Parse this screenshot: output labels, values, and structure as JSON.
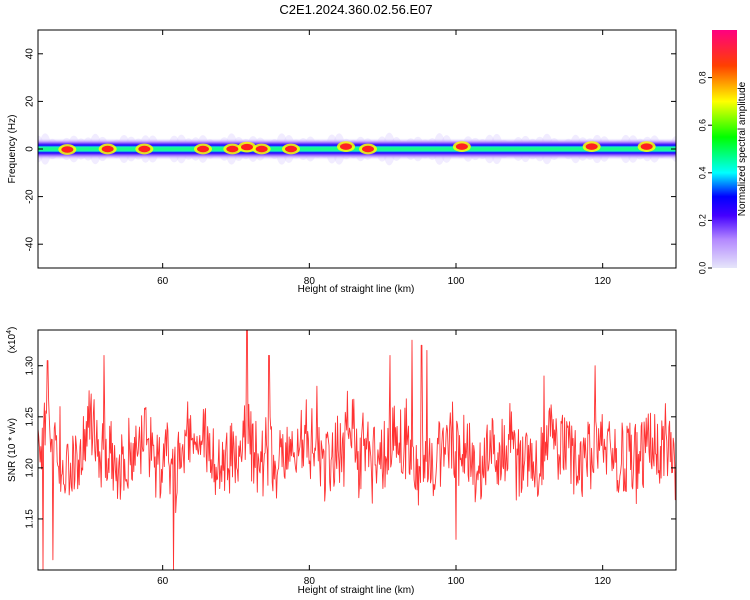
{
  "title": "C2E1.2024.360.02.56.E07",
  "chart_data": [
    {
      "type": "heatmap",
      "xlabel": "Height of straight line (km)",
      "ylabel": "Frequency (Hz)",
      "xlim": [
        43,
        130
      ],
      "ylim": [
        -50,
        50
      ],
      "xticks": [
        60,
        80,
        100,
        120
      ],
      "yticks": [
        -40,
        -20,
        0,
        20,
        40
      ],
      "colorbar": {
        "label": "Normalized spectral amplitude",
        "range": [
          0,
          1
        ],
        "ticks": [
          "0.0",
          "0.2",
          "0.4",
          "0.6",
          "0.8"
        ],
        "tick_values": [
          0.0,
          0.2,
          0.4,
          0.6,
          0.8
        ],
        "colors": [
          "#e6e6fa",
          "#7f00ff",
          "#0000ff",
          "#00ffff",
          "#00ff00",
          "#ffff00",
          "#ff0000",
          "#ff0080"
        ]
      },
      "band_center_hz": 0,
      "band_halfwidth_hz": 3,
      "hotspots": [
        {
          "x": 47,
          "y": -0.2
        },
        {
          "x": 52.5,
          "y": 0
        },
        {
          "x": 57.5,
          "y": 0
        },
        {
          "x": 65.5,
          "y": 0
        },
        {
          "x": 69.5,
          "y": 0
        },
        {
          "x": 71.5,
          "y": 0.8
        },
        {
          "x": 73.5,
          "y": 0
        },
        {
          "x": 77.5,
          "y": 0
        },
        {
          "x": 85,
          "y": 1
        },
        {
          "x": 88,
          "y": 0
        },
        {
          "x": 100.8,
          "y": 1
        },
        {
          "x": 118.5,
          "y": 1
        },
        {
          "x": 126,
          "y": 1
        }
      ]
    },
    {
      "type": "line",
      "xlabel": "Height of straight line (km)",
      "ylabel": "SNR (10 * v/v)",
      "scale_label": "(x10",
      "scale_exponent": "4",
      "xlim": [
        43,
        130
      ],
      "ylim": [
        1.1,
        1.335
      ],
      "xticks": [
        60,
        80,
        100,
        120
      ],
      "yticks": [
        1.15,
        1.2,
        1.25,
        1.3
      ],
      "ytick_labels": [
        "1.15",
        "1.20",
        "1.25",
        "1.30"
      ],
      "color": "#ff3333",
      "mean": 1.215,
      "amplitude": 0.045,
      "spikes": [
        {
          "x": 43.7,
          "y": 1.1
        },
        {
          "x": 44.3,
          "y": 1.305
        },
        {
          "x": 45.0,
          "y": 1.11
        },
        {
          "x": 46.0,
          "y": 1.26
        },
        {
          "x": 52.0,
          "y": 1.31
        },
        {
          "x": 61.5,
          "y": 1.1
        },
        {
          "x": 71.5,
          "y": 1.335
        },
        {
          "x": 74.5,
          "y": 1.31
        },
        {
          "x": 81.0,
          "y": 1.28
        },
        {
          "x": 91.0,
          "y": 1.31
        },
        {
          "x": 94.0,
          "y": 1.325
        },
        {
          "x": 95.3,
          "y": 1.32
        },
        {
          "x": 96.0,
          "y": 1.315
        },
        {
          "x": 100.0,
          "y": 1.13
        },
        {
          "x": 112.0,
          "y": 1.29
        },
        {
          "x": 119.0,
          "y": 1.3
        },
        {
          "x": 129.0,
          "y": 1.24
        }
      ]
    }
  ]
}
